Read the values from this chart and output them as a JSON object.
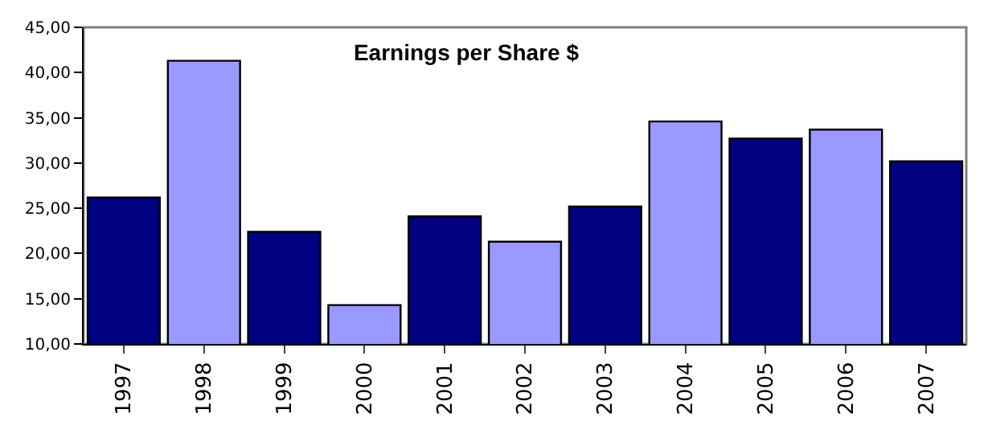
{
  "chart_data": {
    "type": "bar",
    "title": "Earnings per Share $",
    "categories": [
      "1997",
      "1998",
      "1999",
      "2000",
      "2001",
      "2002",
      "2003",
      "2004",
      "2005",
      "2006",
      "2007"
    ],
    "values": [
      26.2,
      41.3,
      22.4,
      14.3,
      24.1,
      21.3,
      25.2,
      34.6,
      32.7,
      33.7,
      30.2
    ],
    "colors": [
      "#000080",
      "#9999ff",
      "#000080",
      "#9999ff",
      "#000080",
      "#9999ff",
      "#000080",
      "#9999ff",
      "#000080",
      "#9999ff",
      "#000080"
    ],
    "ylim": [
      10,
      45
    ],
    "yticks": [
      {
        "value": 10,
        "label": "10,00"
      },
      {
        "value": 15,
        "label": "15,00"
      },
      {
        "value": 20,
        "label": "20,00"
      },
      {
        "value": 25,
        "label": "25,00"
      },
      {
        "value": 30,
        "label": "30,00"
      },
      {
        "value": 35,
        "label": "35,00"
      },
      {
        "value": 40,
        "label": "40,00"
      },
      {
        "value": 45,
        "label": "45,00"
      }
    ],
    "grid": false,
    "legend": false
  }
}
